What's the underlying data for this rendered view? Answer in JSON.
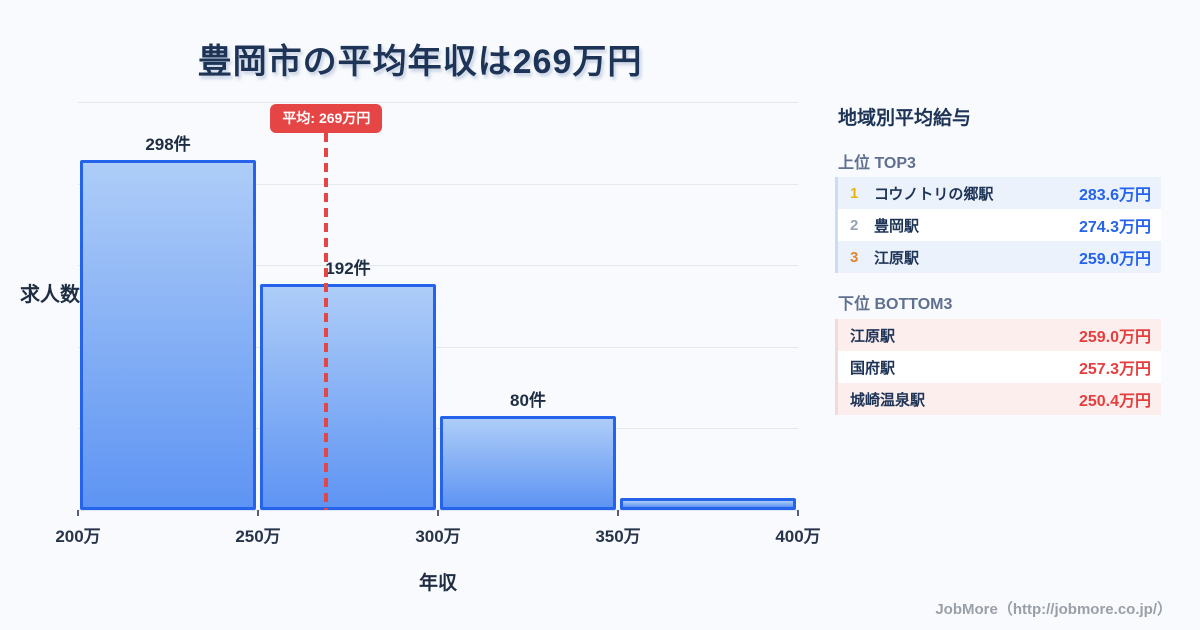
{
  "title": "豊岡市の平均年収は269万円",
  "chart_data": {
    "type": "bar",
    "title": "豊岡市の平均年収は269万円",
    "xlabel": "年収",
    "ylabel": "求人数",
    "xlim": [
      200,
      400
    ],
    "x_ticks": [
      "200万",
      "250万",
      "300万",
      "350万",
      "400万"
    ],
    "grid": true,
    "bins": [
      {
        "range": "200万-250万",
        "count": 298,
        "label": "298件"
      },
      {
        "range": "250万-300万",
        "count": 192,
        "label": "192件"
      },
      {
        "range": "300万-350万",
        "count": 80,
        "label": "80件"
      },
      {
        "range": "350万-400万",
        "count": 10,
        "label": ""
      }
    ],
    "average_line": {
      "value": 269,
      "label": "平均: 269万円"
    },
    "colors": {
      "bar_gradient_top": "#aecdf8",
      "bar_gradient_bottom": "#5e94f3",
      "bar_border": "#2563eb",
      "average_red": "#e64545",
      "gridline": "#e4e9f1"
    }
  },
  "sidebar": {
    "header": "地域別平均給与",
    "top3": {
      "heading": "上位 TOP3",
      "value_color": "#2563eb",
      "rows": [
        {
          "rank": "1",
          "name": "コウノトリの郷駅",
          "value": "283.6万円"
        },
        {
          "rank": "2",
          "name": "豊岡駅",
          "value": "274.3万円"
        },
        {
          "rank": "3",
          "name": "江原駅",
          "value": "259.0万円"
        }
      ]
    },
    "bottom3": {
      "heading": "下位 BOTTOM3",
      "value_color": "#e53e3e",
      "rows": [
        {
          "name": "江原駅",
          "value": "259.0万円"
        },
        {
          "name": "国府駅",
          "value": "257.3万円"
        },
        {
          "name": "城崎温泉駅",
          "value": "250.4万円"
        }
      ]
    }
  },
  "footer": {
    "credit": "JobMore（http://jobmore.co.jp/）"
  }
}
